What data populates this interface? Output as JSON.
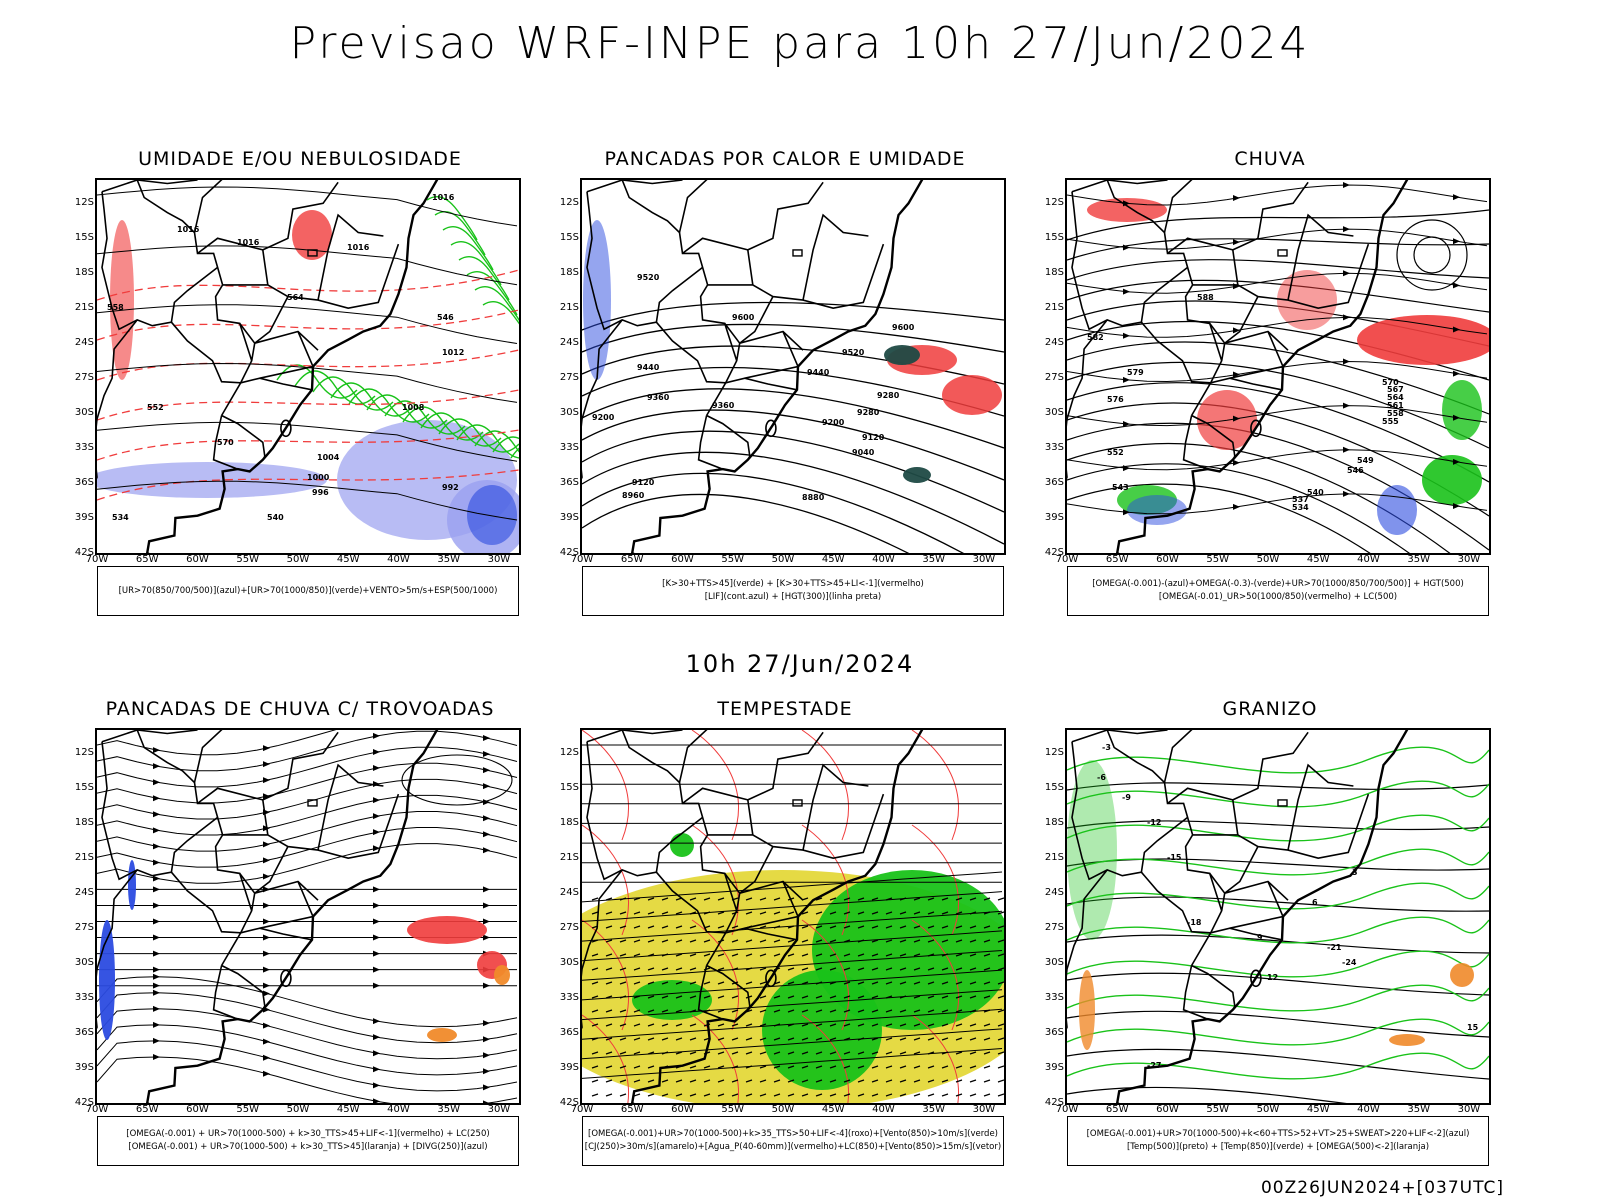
{
  "main_title": "Previsao WRF-INPE  para 10h 27/Jun/2024",
  "mid_title": "10h 27/Jun/2024",
  "footer": "00Z26JUN2024+[037UTC]",
  "axes": {
    "lat_ticks": [
      "12S",
      "15S",
      "18S",
      "21S",
      "24S",
      "27S",
      "30S",
      "33S",
      "36S",
      "39S",
      "42S"
    ],
    "lon_ticks": [
      "70W",
      "65W",
      "60W",
      "55W",
      "50W",
      "45W",
      "40W",
      "35W",
      "30W"
    ]
  },
  "colors": {
    "blue": "#2b4be0",
    "green": "#19c219",
    "red": "#f03c3c",
    "orange": "#f08a2a",
    "yellow": "#e4d83a",
    "shade_blue": "#9aa0f0",
    "teal": "#1f4a44"
  },
  "panels": [
    {
      "title": "UMIDADE E/OU NEBULOSIDADE",
      "legend": [
        "[UR>70(850/700/500)](azul)+[UR>70(1000/850)](verde)+VENTO>5m/s+ESP(500/1000)"
      ],
      "labels": [
        "1016",
        "1016",
        "1016",
        "1016",
        "1012",
        "1008",
        "1004",
        "1000",
        "996",
        "992",
        "570",
        "564",
        "558",
        "552",
        "546",
        "540",
        "534"
      ]
    },
    {
      "title": "PANCADAS POR CALOR E UMIDADE",
      "legend": [
        "[K>30+TTS>45](verde) + [K>30+TTS>45+LI<-1](vermelho)",
        "[LIF](cont.azul) + [HGT(300)](linha preta)"
      ],
      "labels": [
        "9600",
        "9600",
        "9520",
        "9520",
        "9440",
        "9440",
        "9360",
        "9360",
        "9280",
        "9280",
        "9200",
        "9200",
        "9120",
        "9120",
        "9040",
        "8960",
        "8880"
      ]
    },
    {
      "title": "CHUVA",
      "legend": [
        "[OMEGA(-0.001)-(azul)+OMEGA(-0.3)-(verde)+UR>70(1000/850/700/500)] + HGT(500)",
        "[OMEGA(-0.01)_UR>50(1000/850)(vermelho) + LC(500)"
      ],
      "labels": [
        "588",
        "582",
        "579",
        "576",
        "570",
        "567",
        "564",
        "561",
        "558",
        "555",
        "552",
        "549",
        "546",
        "543",
        "540",
        "537",
        "534"
      ]
    },
    {
      "title": "PANCADAS DE CHUVA C/ TROVOADAS",
      "legend": [
        "[OMEGA(-0.001) + UR>70(1000-500) + k>30_TTS>45+LIF<-1](vermelho) + LC(250)",
        "[OMEGA(-0.001) + UR>70(1000-500) + k>30_TTS>45](laranja) + [DIVG(250)](azul)"
      ],
      "labels": []
    },
    {
      "title": "TEMPESTADE",
      "legend": [
        "[OMEGA(-0.001)+UR>70(1000-500)+k>35_TTS>50+LIF<-4](roxo)+[Vento(850)>10m/s](verde)",
        "[CJ(250)>30m/s](amarelo)+[Agua_P(40-60mm)](vermelho)+LC(850)+[Vento(850)>15m/s](vetor)"
      ],
      "labels": []
    },
    {
      "title": "GRANIZO",
      "legend": [
        "[OMEGA(-0.001)+UR>70(1000-500)+k<60+TTS>52+VT>25+SWEAT>220+LIF<-2](azul)",
        "[Temp(500)](preto) + [Temp(850)](verde) + [OMEGA(500)<-2](laranja)"
      ],
      "labels": [
        "-3",
        "-6",
        "-9",
        "-12",
        "-15",
        "-18",
        "-21",
        "-24",
        "-27",
        "3",
        "6",
        "9",
        "12",
        "15"
      ]
    }
  ]
}
